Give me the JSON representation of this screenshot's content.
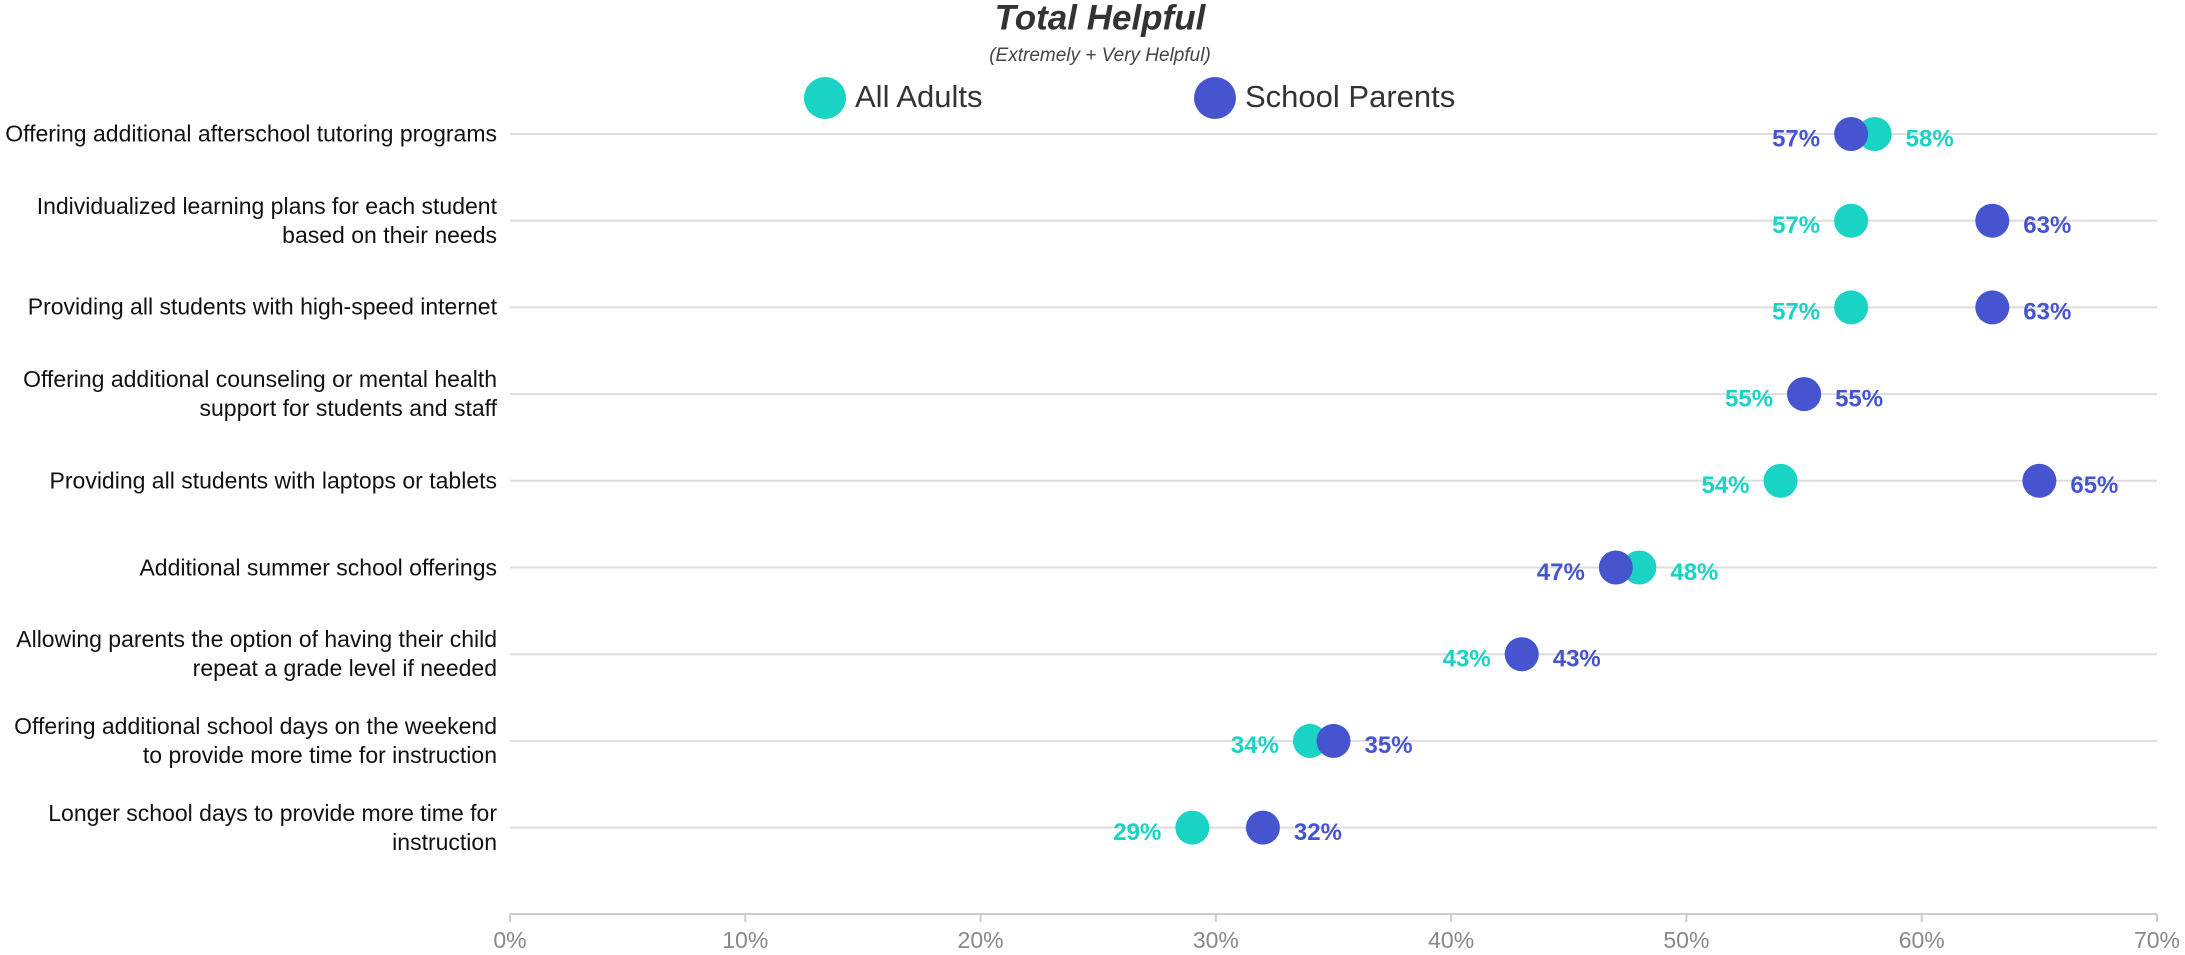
{
  "chart_data": {
    "type": "dot",
    "title": "Total Helpful",
    "subtitle": "(Extremely + Very Helpful)",
    "categories": [
      "Offering additional afterschool tutoring programs",
      "Individualized learning plans for each student based on their needs",
      "Providing all students with high-speed internet",
      "Offering additional counseling or mental health support for students and staff",
      "Providing all students with laptops or tablets",
      "Additional summer school offerings",
      "Allowing parents the option of having their child repeat a grade level if needed",
      "Offering additional school days on the weekend to provide more time for instruction",
      "Longer school days to provide more time for instruction"
    ],
    "series": [
      {
        "name": "All Adults",
        "color": "#19d3c5",
        "values": [
          58,
          57,
          57,
          55,
          54,
          48,
          43,
          34,
          29
        ],
        "value_labels": [
          "58%",
          "57%",
          "57%",
          "55%",
          "54%",
          "48%",
          "43%",
          "34%",
          "29%"
        ]
      },
      {
        "name": "School Parents",
        "color": "#4655cf",
        "values": [
          57,
          63,
          63,
          55,
          65,
          47,
          43,
          35,
          32
        ],
        "value_labels": [
          "57%",
          "63%",
          "63%",
          "55%",
          "65%",
          "47%",
          "43%",
          "35%",
          "32%"
        ]
      }
    ],
    "xlim": [
      0,
      70
    ],
    "xticks": [
      {
        "value": 0,
        "label": "0%"
      },
      {
        "value": 10,
        "label": "10%"
      },
      {
        "value": 20,
        "label": "20%"
      },
      {
        "value": 30,
        "label": "30%"
      },
      {
        "value": 40,
        "label": "40%"
      },
      {
        "value": 50,
        "label": "50%"
      },
      {
        "value": 60,
        "label": "60%"
      },
      {
        "value": 70,
        "label": "70%"
      }
    ],
    "grid": true
  }
}
